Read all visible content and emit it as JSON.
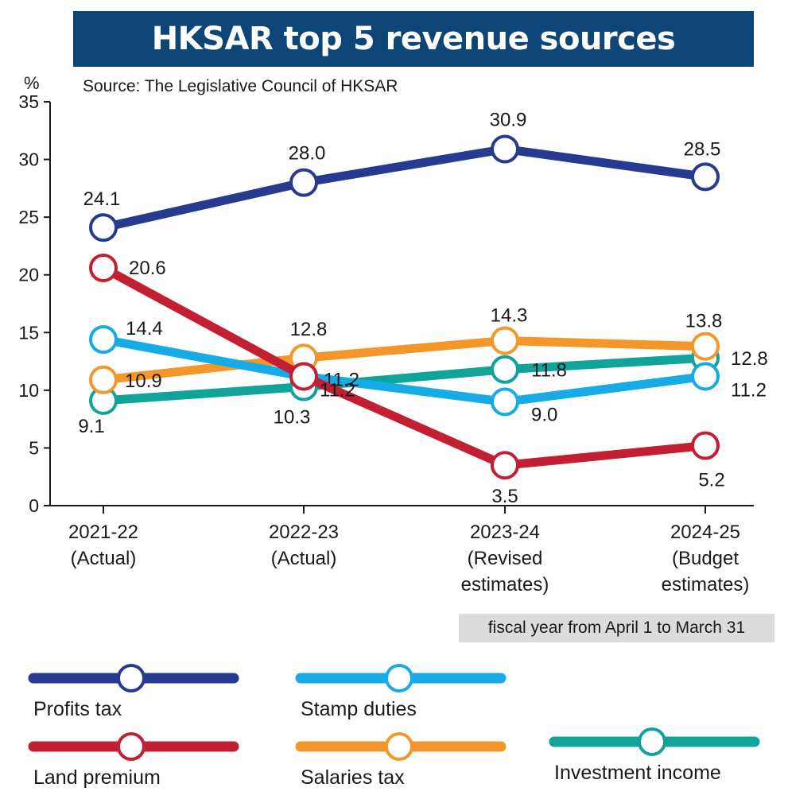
{
  "title": "HKSAR top 5 revenue sources",
  "source": "Source: The Legislative Council of HKSAR",
  "unit": "%",
  "note": "fiscal year from April 1 to March 31",
  "chart_data": {
    "type": "line",
    "title": "HKSAR top 5 revenue sources",
    "ylabel": "%",
    "ylim": [
      0,
      35
    ],
    "yticks": [
      0,
      5,
      10,
      15,
      20,
      25,
      30,
      35
    ],
    "grid": false,
    "legend_position": "bottom",
    "categories": [
      [
        "2021-22",
        "(Actual)"
      ],
      [
        "2022-23",
        "(Actual)"
      ],
      [
        "2023-24",
        "(Revised",
        "estimates)"
      ],
      [
        "2024-25",
        "(Budget",
        "estimates)"
      ]
    ],
    "series": [
      {
        "name": "Investment income",
        "color": "#10a39a",
        "values": [
          9.1,
          10.3,
          11.8,
          12.8
        ],
        "labels": [
          "9.1",
          "10.3",
          "11.8",
          "12.8"
        ]
      },
      {
        "name": "Salaries tax",
        "color": "#f5962a",
        "values": [
          10.9,
          12.8,
          14.3,
          13.8
        ],
        "labels": [
          "10.9",
          "12.8",
          "14.3",
          "13.8"
        ]
      },
      {
        "name": "Stamp duties",
        "color": "#16aae6",
        "values": [
          14.4,
          11.2,
          9.0,
          11.2
        ],
        "labels": [
          "14.4",
          "11.2",
          "9.0",
          "11.2"
        ]
      },
      {
        "name": "Land premium",
        "color": "#c21f32",
        "values": [
          20.6,
          11.2,
          3.5,
          5.2
        ],
        "labels": [
          "20.6",
          "11.2",
          "3.5",
          "5.2"
        ]
      },
      {
        "name": "Profits tax",
        "color": "#263a8f",
        "values": [
          24.1,
          28.0,
          30.9,
          28.5
        ],
        "labels": [
          "24.1",
          "28.0",
          "30.9",
          "28.5"
        ]
      }
    ]
  }
}
